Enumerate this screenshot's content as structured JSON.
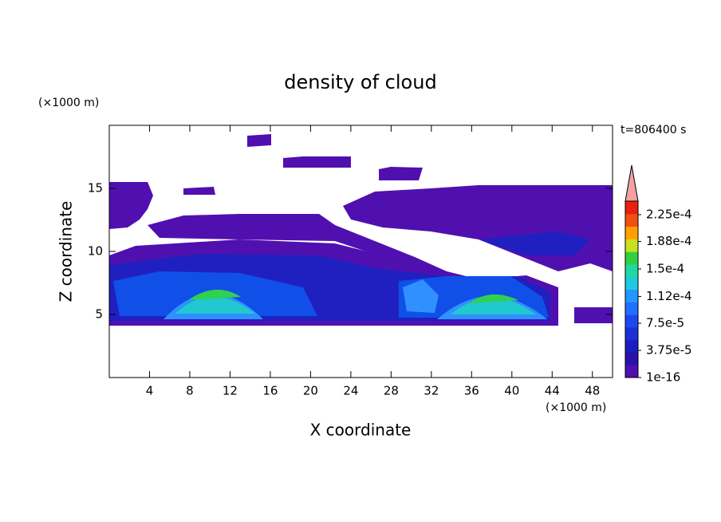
{
  "chart_data": {
    "type": "contour",
    "title": "density of cloud",
    "x_label": "X coordinate",
    "y_label": "Z coordinate",
    "x_unit": "(×1000 m)",
    "y_unit": "(×1000 m)",
    "time_label": "t=806400 s",
    "xlim": [
      0,
      50
    ],
    "xticks": [
      4,
      8,
      12,
      16,
      20,
      24,
      28,
      32,
      36,
      40,
      44,
      48
    ],
    "ylim": [
      0,
      20
    ],
    "yticks": [
      5,
      10,
      15
    ],
    "colorbar": {
      "clim": [
        1e-16,
        0.00024375
      ],
      "colors": [
        "#5010b0",
        "#2a12a8",
        "#1a1ec0",
        "#1c30d8",
        "#1c48f0",
        "#2070ff",
        "#2098ff",
        "#20c8e0",
        "#20d8a0",
        "#30d040",
        "#c8e020",
        "#ffa000",
        "#f05010",
        "#e82010"
      ],
      "extend_color": "#f4a0a0",
      "ticks": [
        {
          "value": 1e-16,
          "label": "1e-16"
        },
        {
          "value": 3.75e-05,
          "label": "3.75e-5"
        },
        {
          "value": 7.5e-05,
          "label": "7.5e-5"
        },
        {
          "value": 0.000112,
          "label": "1.12e-4"
        },
        {
          "value": 0.00015,
          "label": "1.5e-4"
        },
        {
          "value": 0.000188,
          "label": "1.88e-4"
        },
        {
          "value": 0.000225,
          "label": "2.25e-4"
        }
      ]
    }
  }
}
